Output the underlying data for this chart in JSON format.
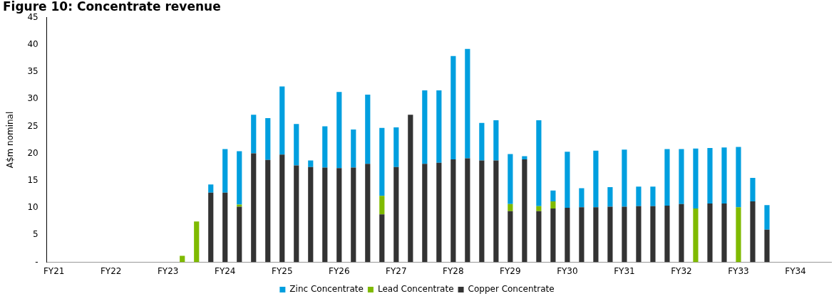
{
  "chart_data": {
    "type": "bar",
    "title": "Figure 10: Concentrate revenue",
    "ylabel": "A$m nominal",
    "stacked": true,
    "legend": "bottom",
    "grid": false,
    "categories": [
      "FY21",
      null,
      null,
      null,
      "FY22",
      null,
      null,
      null,
      "FY23",
      null,
      null,
      null,
      "FY24",
      null,
      null,
      null,
      "FY25",
      null,
      null,
      null,
      "FY26",
      null,
      null,
      null,
      "FY27",
      null,
      null,
      null,
      "FY28",
      null,
      null,
      null,
      "FY29",
      null,
      null,
      null,
      "FY30",
      null,
      null,
      null,
      "FY31",
      null,
      null,
      null,
      "FY32",
      null,
      null,
      null,
      "FY33",
      null,
      null,
      null,
      "FY34",
      null,
      null
    ],
    "ylim": [
      0,
      45
    ],
    "yticks": [
      {
        "value": 0,
        "label": "-"
      },
      5,
      10,
      15,
      20,
      25,
      30,
      35,
      40,
      45
    ],
    "series": [
      {
        "name": "Copper Concentrate",
        "color": "#333333",
        "values": [
          null,
          null,
          null,
          null,
          null,
          null,
          null,
          null,
          null,
          null,
          null,
          12.8,
          12.8,
          10.2,
          20.0,
          18.8,
          19.8,
          17.8,
          17.5,
          17.4,
          17.3,
          17.4,
          18.1,
          8.8,
          17.5,
          27.1,
          18.1,
          18.3,
          18.9,
          19.1,
          18.7,
          18.7,
          9.4,
          18.9,
          9.4,
          9.9,
          10.0,
          10.1,
          10.1,
          10.2,
          10.2,
          10.3,
          10.3,
          10.4,
          10.7,
          null,
          10.8,
          10.8,
          null,
          11.2,
          6.0,
          null,
          null,
          null,
          null
        ]
      },
      {
        "name": "Lead Concentrate",
        "color": "#7fba00",
        "values": [
          null,
          null,
          null,
          null,
          null,
          null,
          null,
          null,
          null,
          1.2,
          7.5,
          null,
          null,
          0.4,
          null,
          null,
          null,
          null,
          null,
          null,
          null,
          null,
          null,
          3.4,
          null,
          null,
          null,
          null,
          null,
          null,
          null,
          null,
          1.3,
          null,
          0.9,
          1.3,
          null,
          null,
          null,
          null,
          null,
          null,
          null,
          null,
          null,
          9.9,
          null,
          null,
          10.1,
          null,
          null,
          null,
          null,
          null,
          null
        ]
      },
      {
        "name": "Zinc Concentrate",
        "color": "#009fdf",
        "values": [
          null,
          null,
          null,
          null,
          null,
          null,
          null,
          null,
          null,
          null,
          null,
          1.5,
          8.0,
          9.8,
          7.1,
          7.7,
          12.5,
          7.6,
          1.2,
          7.6,
          14.0,
          7.0,
          12.7,
          12.5,
          7.3,
          null,
          13.5,
          13.3,
          19.0,
          20.1,
          6.9,
          7.4,
          9.2,
          0.6,
          15.8,
          2.0,
          10.3,
          3.5,
          10.4,
          3.6,
          10.5,
          3.6,
          3.6,
          10.4,
          10.1,
          11.0,
          10.2,
          10.3,
          11.1,
          4.3,
          4.5,
          null,
          null,
          null,
          null
        ]
      }
    ]
  }
}
